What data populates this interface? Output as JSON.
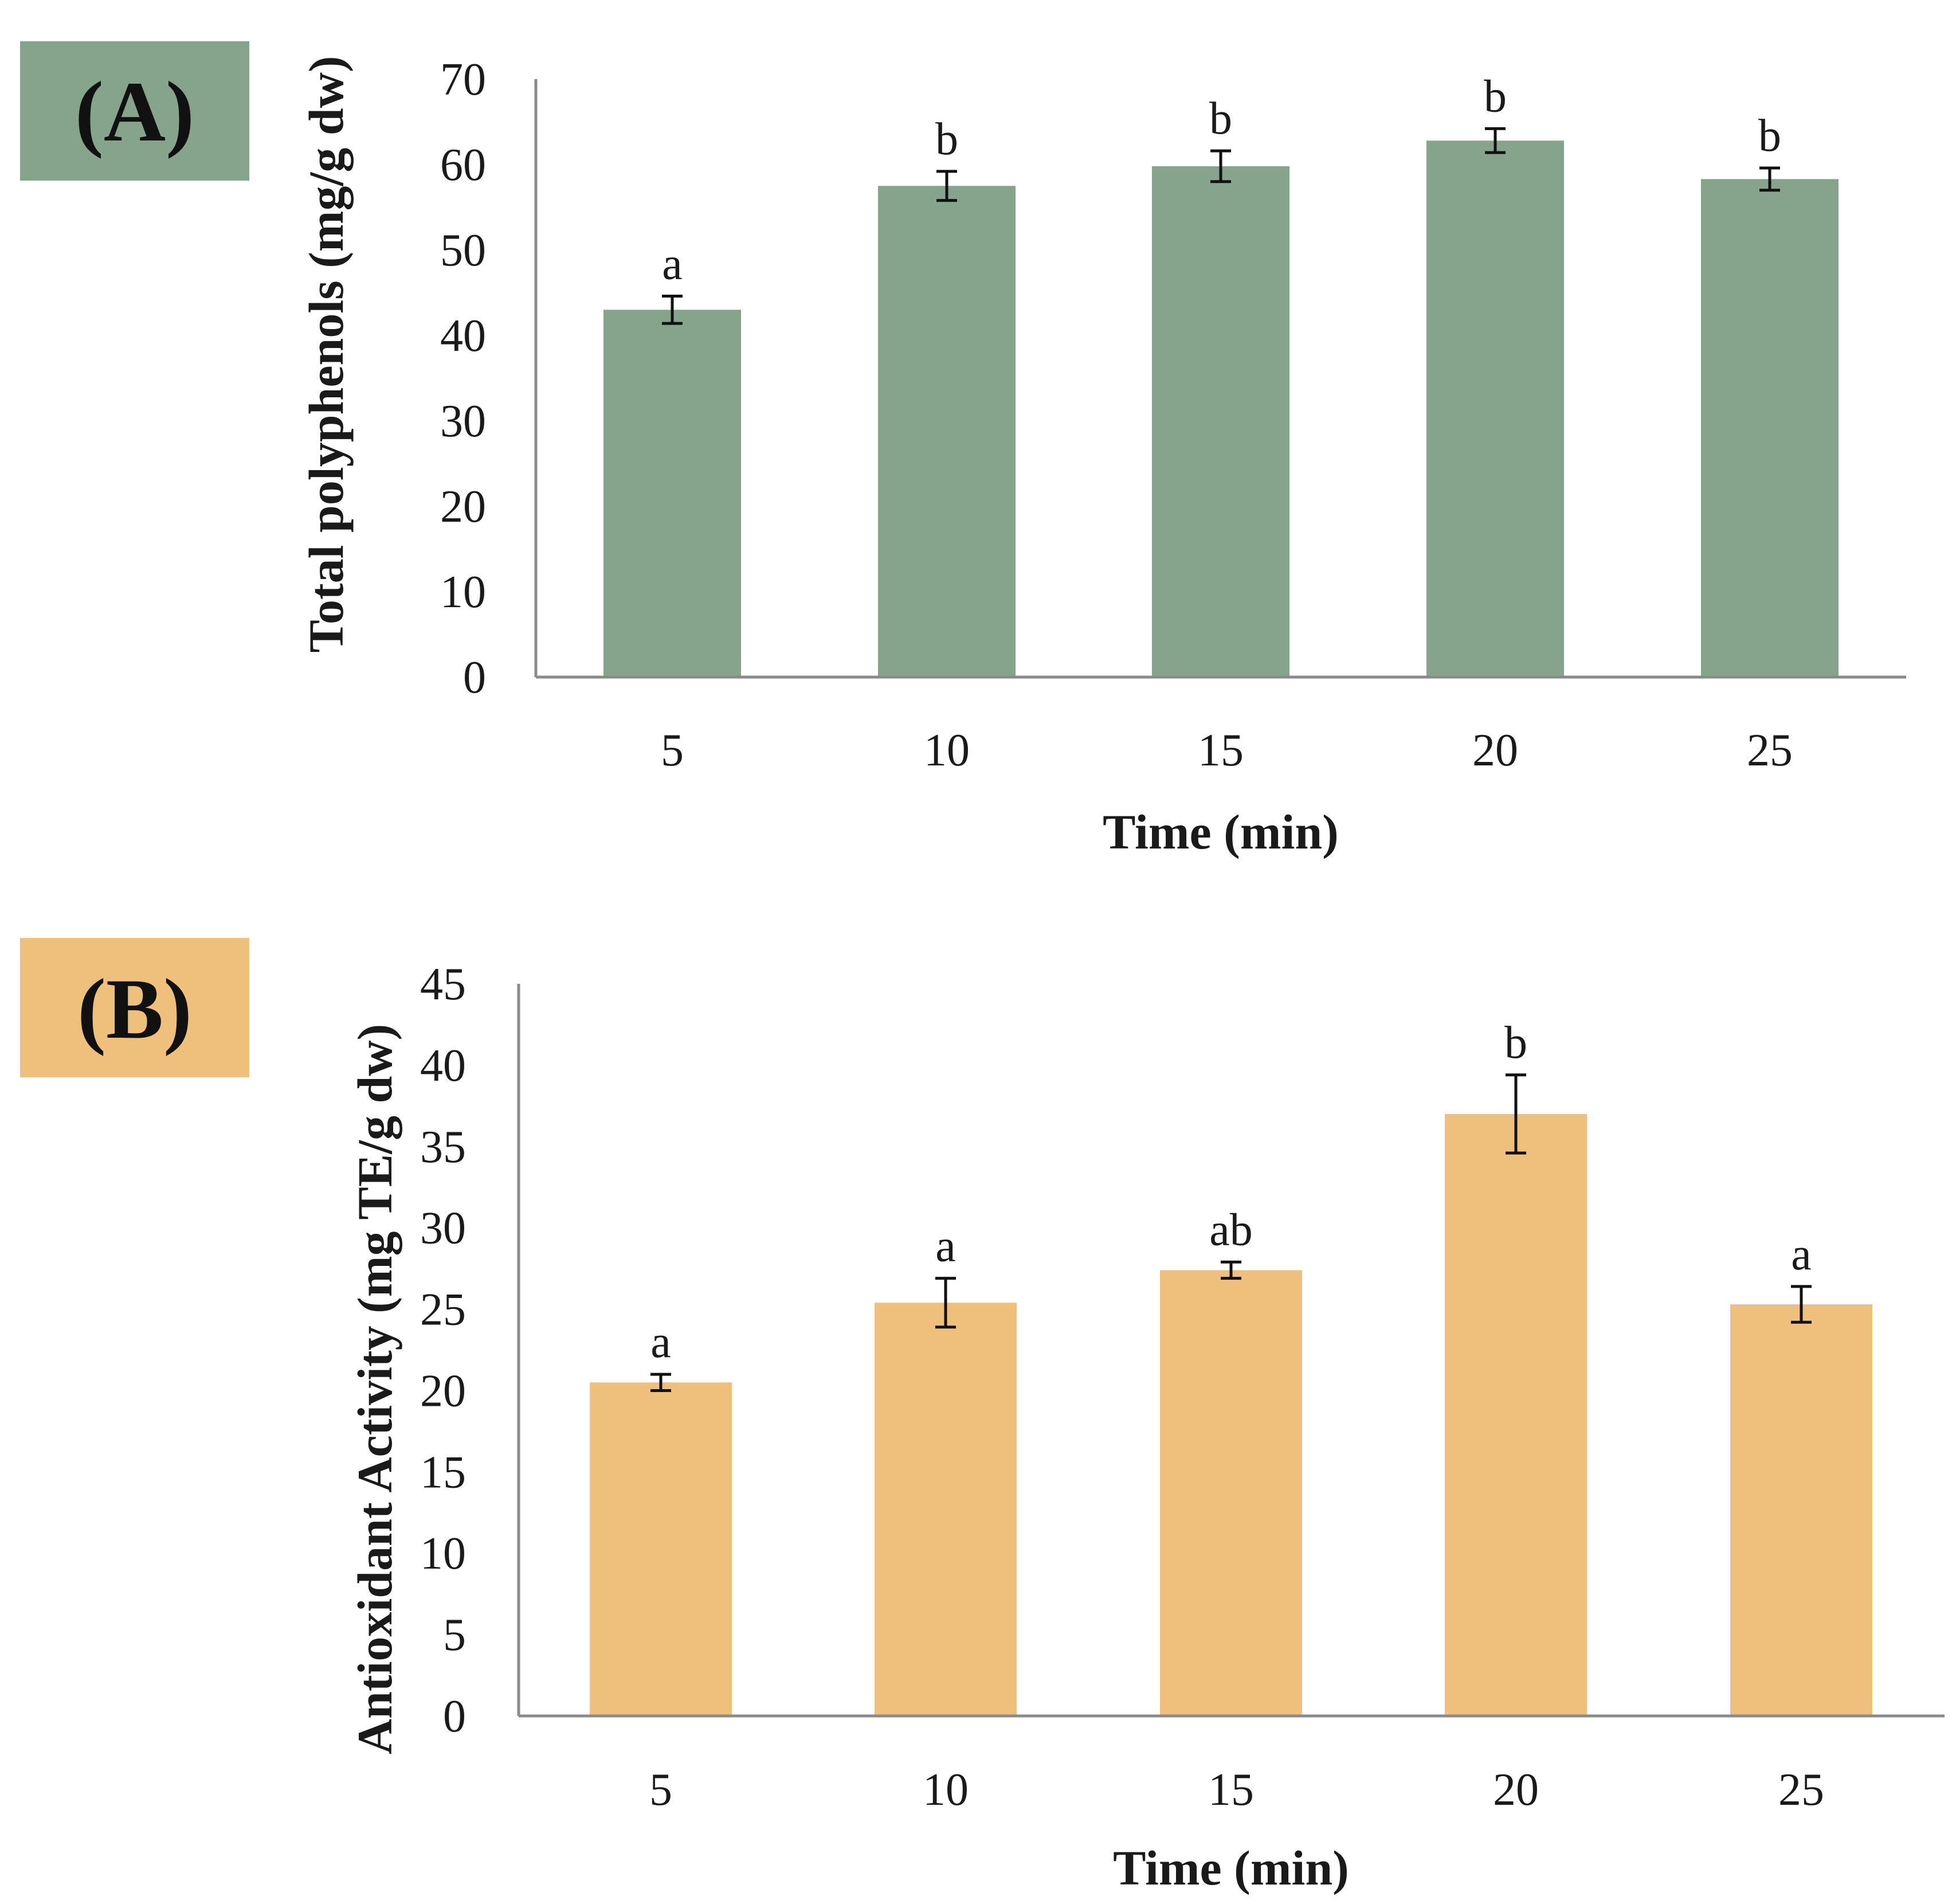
{
  "chart_data": [
    {
      "type": "bar",
      "panel_label": "(A)",
      "panel_color": "#85a48b",
      "bar_color": "#85a48b",
      "categories": [
        "5",
        "10",
        "15",
        "20",
        "25"
      ],
      "values": [
        43,
        57.5,
        59.8,
        62.8,
        58.3
      ],
      "errors": [
        1.6,
        1.7,
        1.8,
        1.4,
        1.3
      ],
      "significance": [
        "a",
        "b",
        "b",
        "b",
        "b"
      ],
      "xlabel": "Time (min)",
      "ylabel": "Total polyphenols (mg/g dw)",
      "ylim": [
        0,
        70
      ],
      "yticks": [
        "0",
        "10",
        "20",
        "30",
        "40",
        "50",
        "60",
        "70"
      ],
      "grid": false
    },
    {
      "type": "bar",
      "panel_label": "(B)",
      "panel_color": "#efc07c",
      "bar_color": "#efc07c",
      "categories": [
        "5",
        "10",
        "15",
        "20",
        "25"
      ],
      "values": [
        20.5,
        25.4,
        27.4,
        37,
        25.3
      ],
      "errors": [
        0.5,
        1.5,
        0.5,
        2.4,
        1.1
      ],
      "significance": [
        "a",
        "a",
        "ab",
        "b",
        "a"
      ],
      "xlabel": "Time (min)",
      "ylabel": "Antioxidant Activity (mg TE/g dw)",
      "ylim": [
        0,
        45
      ],
      "yticks": [
        "0",
        "5",
        "10",
        "15",
        "20",
        "25",
        "30",
        "35",
        "40",
        "45"
      ],
      "grid": false
    }
  ]
}
